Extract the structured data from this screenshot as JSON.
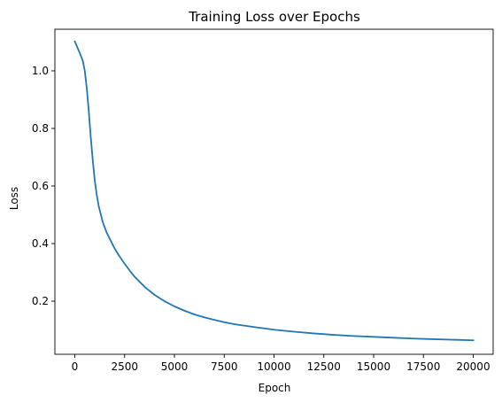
{
  "chart_data": {
    "type": "line",
    "title": "Training Loss over Epochs",
    "xlabel": "Epoch",
    "ylabel": "Loss",
    "xlim": [
      -1000,
      21000
    ],
    "ylim": [
      0.0155,
      1.1445
    ],
    "xticks": [
      0,
      2500,
      5000,
      7500,
      10000,
      12500,
      15000,
      17500,
      20000
    ],
    "yticks": [
      0.2,
      0.4,
      0.6,
      0.8,
      1.0
    ],
    "ytick_labels": [
      "0.2",
      "0.4",
      "0.6",
      "0.8",
      "1.0"
    ],
    "grid": false,
    "legend": "none",
    "series": [
      {
        "color": "#1f77b4",
        "x": [
          0,
          200,
          400,
          500,
          600,
          700,
          800,
          900,
          1000,
          1100,
          1200,
          1400,
          1600,
          1800,
          2000,
          2200,
          2500,
          2800,
          3000,
          3500,
          4000,
          4500,
          5000,
          5500,
          6000,
          6500,
          7000,
          7500,
          8000,
          9000,
          10000,
          11000,
          12000,
          13000,
          14000,
          15000,
          16000,
          17000,
          18000,
          19000,
          20000
        ],
        "y": [
          1.102,
          1.07,
          1.035,
          1.0,
          0.94,
          0.86,
          0.77,
          0.69,
          0.62,
          0.57,
          0.53,
          0.475,
          0.438,
          0.41,
          0.383,
          0.36,
          0.33,
          0.302,
          0.285,
          0.25,
          0.222,
          0.2,
          0.182,
          0.167,
          0.154,
          0.144,
          0.135,
          0.127,
          0.12,
          0.11,
          0.101,
          0.094,
          0.088,
          0.083,
          0.079,
          0.076,
          0.073,
          0.07,
          0.068,
          0.066,
          0.064
        ]
      }
    ]
  }
}
